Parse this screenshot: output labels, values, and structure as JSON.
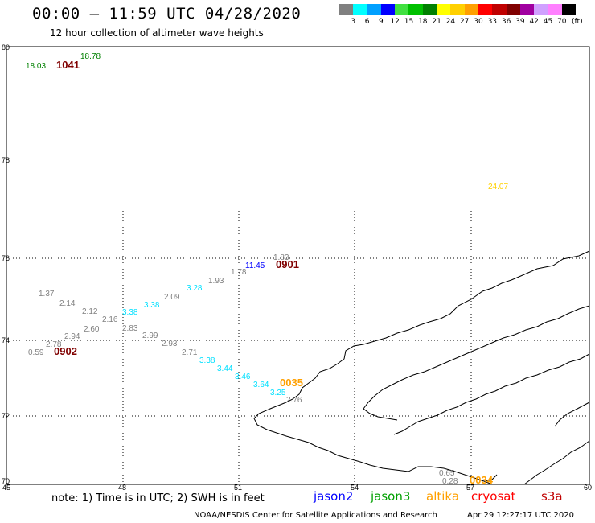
{
  "header": {
    "title": "00:00 – 11:59 UTC 04/28/2020",
    "subtitle": "12 hour collection of altimeter wave heights"
  },
  "legend": {
    "unit": "(ft)",
    "bins": [
      {
        "label": "3",
        "color": "#808080"
      },
      {
        "label": "6",
        "color": "#00ffff"
      },
      {
        "label": "9",
        "color": "#00a0ff"
      },
      {
        "label": "12",
        "color": "#0000ff"
      },
      {
        "label": "15",
        "color": "#40e040"
      },
      {
        "label": "18",
        "color": "#00c000"
      },
      {
        "label": "21",
        "color": "#008000"
      },
      {
        "label": "24",
        "color": "#ffff00"
      },
      {
        "label": "27",
        "color": "#ffd000"
      },
      {
        "label": "30",
        "color": "#ffa000"
      },
      {
        "label": "33",
        "color": "#ff0000"
      },
      {
        "label": "36",
        "color": "#c00000"
      },
      {
        "label": "39",
        "color": "#800000"
      },
      {
        "label": "42",
        "color": "#a000a0"
      },
      {
        "label": "45",
        "color": "#d0a0ff"
      },
      {
        "label": "70",
        "color": "#ff80ff"
      },
      {
        "label": "",
        "color": "#000000"
      }
    ]
  },
  "axes": {
    "lat_labels": [
      "80",
      "78",
      "76",
      "74",
      "72",
      "70"
    ],
    "lon_labels": [
      "45",
      "48",
      "51",
      "54",
      "57",
      "60"
    ]
  },
  "observations": [
    {
      "text": "18.78",
      "color": "#008000"
    },
    {
      "text": "18.03",
      "color": "#008000"
    },
    {
      "text": "1041",
      "color": "#800000"
    },
    {
      "text": "24.07",
      "color": "#ffd000"
    },
    {
      "text": "1.83",
      "color": "#808080"
    },
    {
      "text": "11.45",
      "color": "#0000ff"
    },
    {
      "text": "0901",
      "color": "#800000"
    },
    {
      "text": "1.78",
      "color": "#808080"
    },
    {
      "text": "1.93",
      "color": "#808080"
    },
    {
      "text": "3.28",
      "color": "#00e0ff"
    },
    {
      "text": "2.09",
      "color": "#808080"
    },
    {
      "text": "3.38",
      "color": "#00e0ff"
    },
    {
      "text": "3.38",
      "color": "#00e0ff"
    },
    {
      "text": "1.37",
      "color": "#808080"
    },
    {
      "text": "2.14",
      "color": "#808080"
    },
    {
      "text": "2.12",
      "color": "#808080"
    },
    {
      "text": "2.16",
      "color": "#808080"
    },
    {
      "text": "2.60",
      "color": "#808080"
    },
    {
      "text": "2.83",
      "color": "#808080"
    },
    {
      "text": "2.99",
      "color": "#808080"
    },
    {
      "text": "2.94",
      "color": "#808080"
    },
    {
      "text": "2.93",
      "color": "#808080"
    },
    {
      "text": "2.78",
      "color": "#808080"
    },
    {
      "text": "0.59",
      "color": "#808080"
    },
    {
      "text": "0902",
      "color": "#800000"
    },
    {
      "text": "2.71",
      "color": "#808080"
    },
    {
      "text": "3.38",
      "color": "#00e0ff"
    },
    {
      "text": "3.44",
      "color": "#00e0ff"
    },
    {
      "text": "3.46",
      "color": "#00e0ff"
    },
    {
      "text": "3.64",
      "color": "#00e0ff"
    },
    {
      "text": "0035",
      "color": "#ffa000"
    },
    {
      "text": "3.25",
      "color": "#00e0ff"
    },
    {
      "text": "2.76",
      "color": "#808080"
    },
    {
      "text": "0.65",
      "color": "#808080"
    },
    {
      "text": "0.28",
      "color": "#808080"
    },
    {
      "text": "0034",
      "color": "#ffa000"
    }
  ],
  "footer": {
    "note": "note:  1) Time is in UTC;  2) SWH is in feet",
    "satellites": [
      {
        "name": "jason2",
        "color": "#0000ff"
      },
      {
        "name": "jason3",
        "color": "#00a000"
      },
      {
        "name": "altika",
        "color": "#ffa000"
      },
      {
        "name": "cryosat",
        "color": "#ff0000"
      },
      {
        "name": "s3a",
        "color": "#c00000"
      }
    ],
    "credit": "NOAA/NESDIS Center for Satellite Applications and Research",
    "timestamp": "Apr 29 12:27:17 UTC 2020"
  }
}
